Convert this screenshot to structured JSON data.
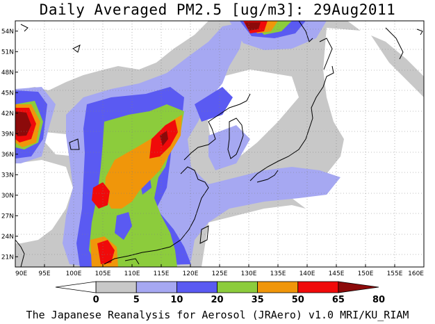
{
  "title": "Daily Averaged PM2.5 [ug/m3]: 29Aug2011",
  "credit": "The Japanese Reanalysis for Aerosol (JRAero) v1.0 MRI/KU_RIAM",
  "map": {
    "lon_range": [
      90,
      160
    ],
    "lat_range": [
      19.5,
      55.5
    ],
    "lon_ticks": [
      "90E",
      "95E",
      "100E",
      "105E",
      "110E",
      "115E",
      "120E",
      "125E",
      "130E",
      "135E",
      "140E",
      "145E",
      "150E",
      "155E",
      "160E"
    ],
    "lat_ticks": [
      "21N",
      "24N",
      "27N",
      "30N",
      "33N",
      "36N",
      "39N",
      "42N",
      "45N",
      "48N",
      "51N",
      "54N"
    ],
    "grid": true
  },
  "colorbar": {
    "levels": [
      "0",
      "5",
      "10",
      "20",
      "35",
      "50",
      "65",
      "80"
    ],
    "colors": [
      "#ffffff",
      "#c8c8c8",
      "#a6a8f2",
      "#5a5af2",
      "#8ccc3c",
      "#f0960a",
      "#f00a0a",
      "#8c0a0a"
    ]
  }
}
